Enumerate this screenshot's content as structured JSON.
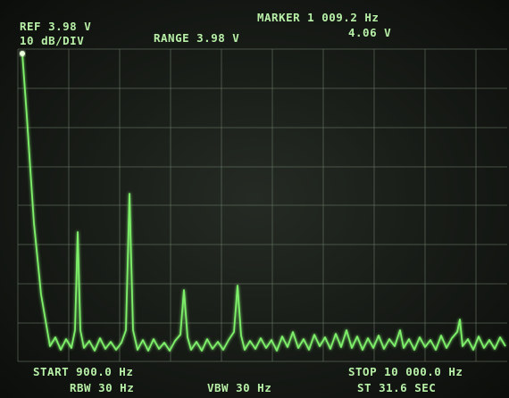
{
  "readouts": {
    "reference": "REF 3.98 V",
    "scale": "10 dB/DIV",
    "range": "RANGE 3.98 V",
    "marker_frequency": "MARKER 1 009.2 Hz",
    "marker_level": "4.06 V",
    "start": "START 900.0 Hz",
    "stop": "STOP 10 000.0 Hz",
    "rbw": "RBW 30 Hz",
    "vbw": "VBW 30 Hz",
    "sweep_time": "ST 31.6 SEC"
  }
}
